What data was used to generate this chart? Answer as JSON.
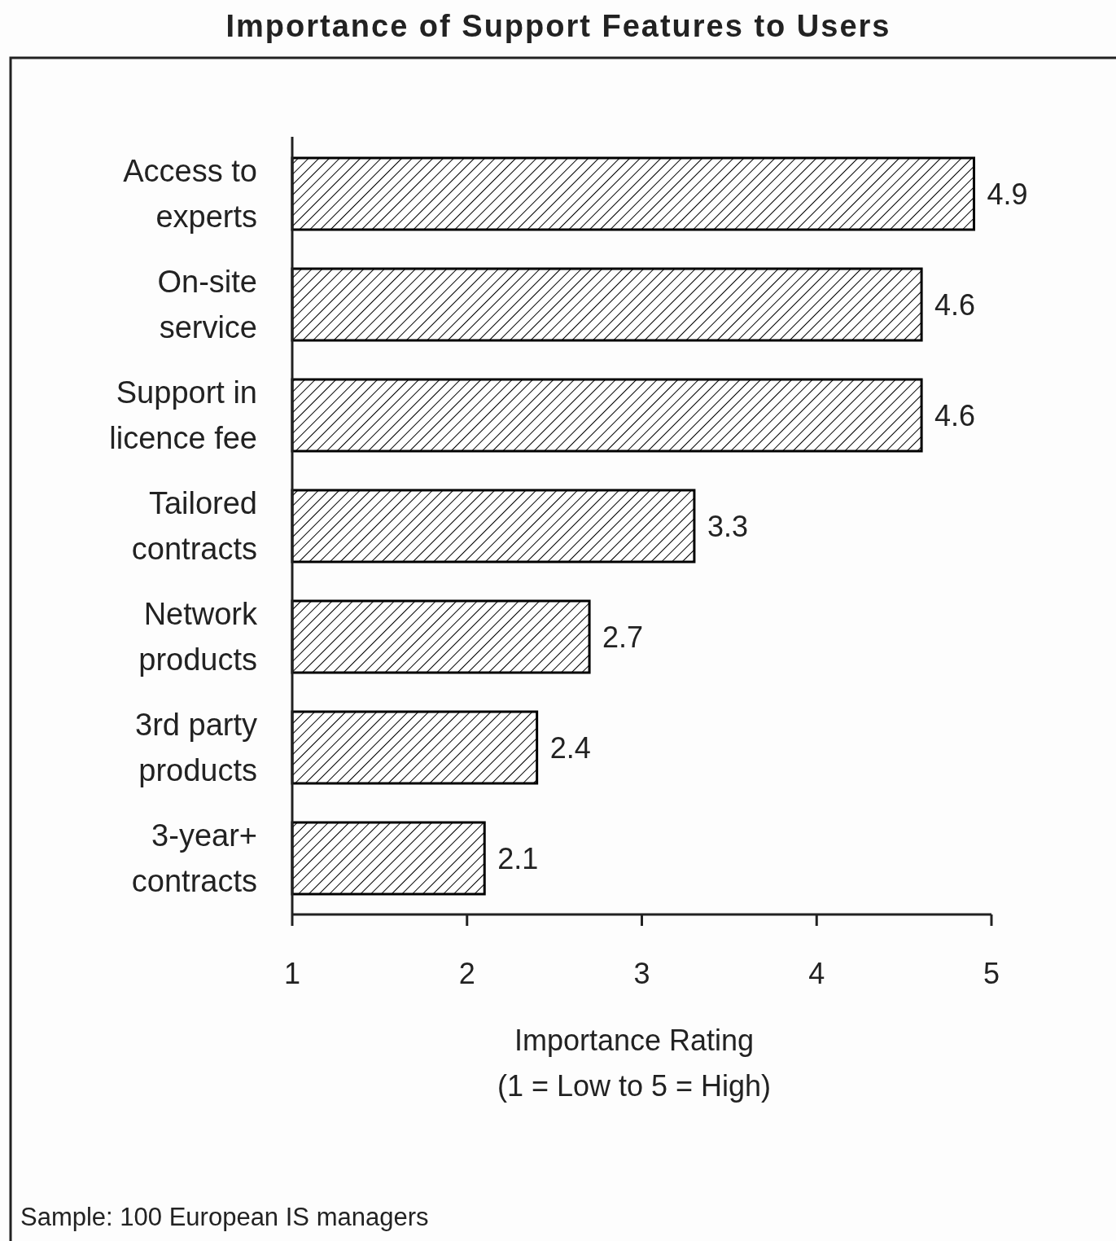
{
  "chart_data": {
    "type": "bar",
    "orientation": "horizontal",
    "title": "Importance of Support Features to Users",
    "xlabel": "Importance Rating\n(1 = Low to 5 = High)",
    "categories": [
      "Access to\nexperts",
      "On-site\nservice",
      "Support in\nlicence fee",
      "Tailored\ncontracts",
      "Network\nproducts",
      "3rd party\nproducts",
      "3-year+\ncontracts"
    ],
    "values": [
      4.9,
      4.6,
      4.6,
      3.3,
      2.7,
      2.4,
      2.1
    ],
    "color": "#000000",
    "xlim": [
      1,
      5
    ],
    "xticks": [
      1,
      2,
      3,
      4,
      5
    ],
    "grid": false,
    "data_labels": true,
    "annotations": [
      "Sample:  100 European IS managers"
    ]
  }
}
